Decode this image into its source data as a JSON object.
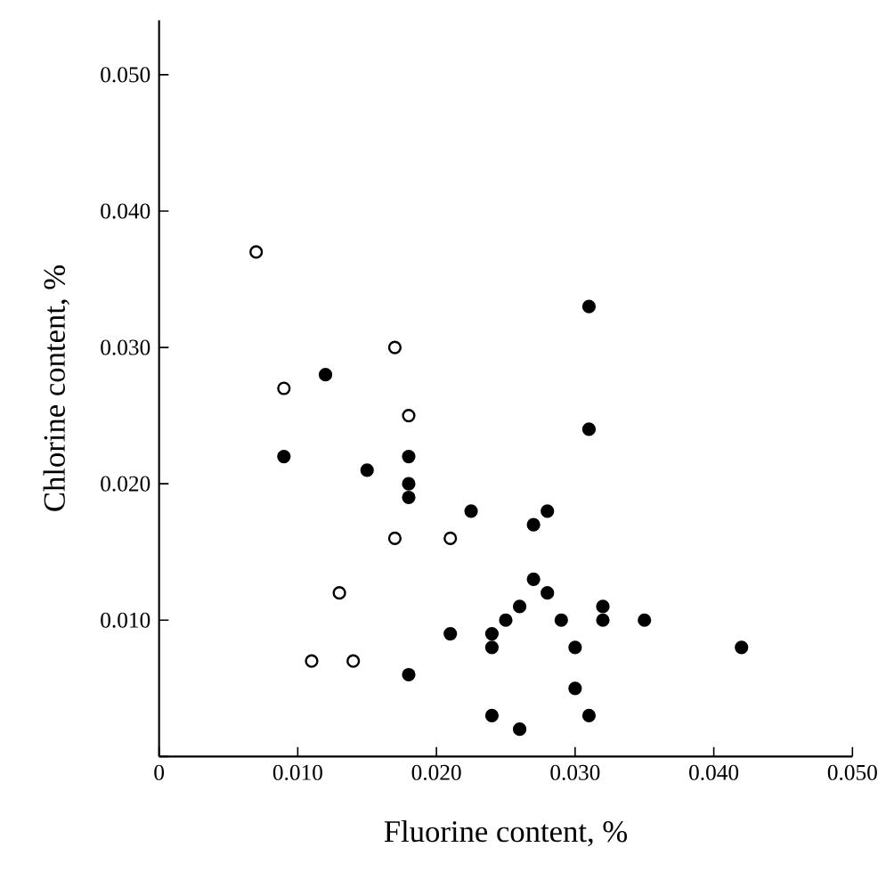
{
  "chart_data": {
    "type": "scatter",
    "xlabel": "Fluorine content, %",
    "ylabel": "Chlorine content, %",
    "xlim": [
      0,
      0.05
    ],
    "ylim": [
      0,
      0.054
    ],
    "xticks": [
      {
        "value": 0,
        "label": "0"
      },
      {
        "value": 0.01,
        "label": "0.010"
      },
      {
        "value": 0.02,
        "label": "0.020"
      },
      {
        "value": 0.03,
        "label": "0.030"
      },
      {
        "value": 0.04,
        "label": "0.040"
      },
      {
        "value": 0.05,
        "label": "0.050"
      }
    ],
    "yticks": [
      {
        "value": 0,
        "label": null
      },
      {
        "value": 0.01,
        "label": "0.010"
      },
      {
        "value": 0.02,
        "label": "0.020"
      },
      {
        "value": 0.03,
        "label": "0.030"
      },
      {
        "value": 0.04,
        "label": "0.040"
      },
      {
        "value": 0.05,
        "label": "0.050"
      }
    ],
    "grid": false,
    "series": [
      {
        "color": "#000000",
        "x": [
          0.007,
          0.009,
          0.017,
          0.018,
          0.017,
          0.021,
          0.013,
          0.011,
          0.014
        ],
        "values": [
          0.037,
          0.027,
          0.03,
          0.025,
          0.016,
          0.016,
          0.012,
          0.007,
          0.007
        ],
        "marker": "open circle"
      },
      {
        "color": "#000000",
        "x": [
          0.012,
          0.009,
          0.015,
          0.018,
          0.018,
          0.018,
          0.0225,
          0.027,
          0.028,
          0.031,
          0.031,
          0.027,
          0.028,
          0.026,
          0.025,
          0.029,
          0.032,
          0.032,
          0.035,
          0.021,
          0.024,
          0.024,
          0.03,
          0.042,
          0.018,
          0.03,
          0.024,
          0.031,
          0.026
        ],
        "values": [
          0.028,
          0.022,
          0.021,
          0.022,
          0.02,
          0.019,
          0.018,
          0.017,
          0.018,
          0.033,
          0.024,
          0.013,
          0.012,
          0.011,
          0.01,
          0.01,
          0.011,
          0.01,
          0.01,
          0.009,
          0.009,
          0.008,
          0.008,
          0.008,
          0.006,
          0.005,
          0.003,
          0.003,
          0.002
        ],
        "marker": "circle"
      }
    ]
  }
}
